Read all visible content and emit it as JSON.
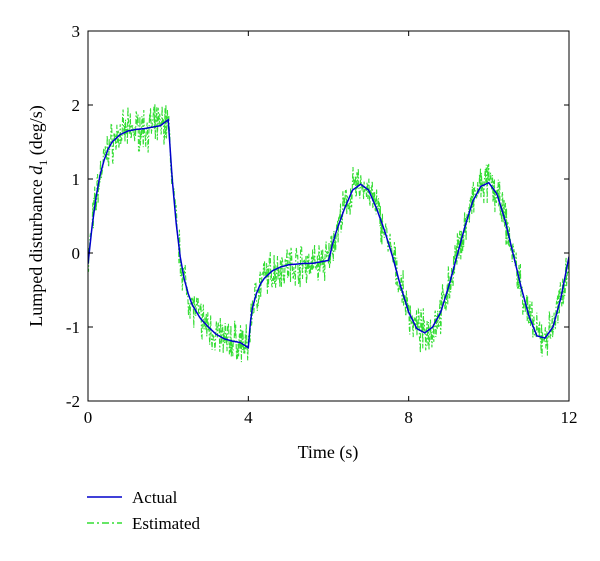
{
  "chart_data": {
    "type": "line",
    "xlabel": "Time (s)",
    "ylabel_main": "Lumped disturbance ",
    "ylabel_var": "d",
    "ylabel_sub": "1",
    "ylabel_unit": " (deg/s)",
    "xlim": [
      0,
      12
    ],
    "ylim": [
      -2,
      3
    ],
    "xticks": [
      0,
      4,
      8,
      12
    ],
    "yticks": [
      -2,
      -1,
      0,
      1,
      2,
      3
    ],
    "grid": false,
    "legend_position": "bottom-left, below plot",
    "series": [
      {
        "name": "Actual",
        "color": "#0000cc",
        "style": "solid",
        "x": [
          0,
          0.1,
          0.2,
          0.3,
          0.4,
          0.5,
          0.6,
          0.8,
          1.0,
          1.2,
          1.4,
          1.6,
          1.8,
          2.0,
          2.05,
          2.1,
          2.2,
          2.3,
          2.4,
          2.5,
          2.6,
          2.8,
          3.0,
          3.2,
          3.4,
          3.6,
          3.8,
          4.0,
          4.05,
          4.1,
          4.2,
          4.3,
          4.4,
          4.6,
          4.8,
          5.0,
          5.2,
          5.4,
          5.6,
          5.8,
          6.0,
          6.05,
          6.1,
          6.2,
          6.4,
          6.6,
          6.8,
          7.0,
          7.2,
          7.4,
          7.6,
          7.8,
          8.0,
          8.2,
          8.4,
          8.6,
          8.8,
          9.0,
          9.2,
          9.4,
          9.6,
          9.8,
          10.0,
          10.2,
          10.4,
          10.6,
          10.8,
          11.0,
          11.2,
          11.4,
          11.6,
          11.8,
          12.0
        ],
        "y": [
          -0.15,
          0.35,
          0.75,
          1.05,
          1.25,
          1.4,
          1.5,
          1.6,
          1.65,
          1.67,
          1.68,
          1.7,
          1.72,
          1.8,
          1.4,
          1.0,
          0.4,
          -0.05,
          -0.35,
          -0.55,
          -0.7,
          -0.88,
          -1.0,
          -1.1,
          -1.16,
          -1.19,
          -1.21,
          -1.28,
          -0.95,
          -0.75,
          -0.55,
          -0.42,
          -0.34,
          -0.24,
          -0.19,
          -0.16,
          -0.15,
          -0.14,
          -0.14,
          -0.12,
          -0.1,
          0.0,
          0.12,
          0.3,
          0.6,
          0.85,
          0.93,
          0.85,
          0.6,
          0.3,
          -0.05,
          -0.45,
          -0.8,
          -1.02,
          -1.08,
          -1.0,
          -0.8,
          -0.45,
          -0.05,
          0.35,
          0.7,
          0.9,
          0.95,
          0.8,
          0.45,
          0.0,
          -0.45,
          -0.85,
          -1.12,
          -1.15,
          -1.0,
          -0.6,
          -0.05
        ]
      },
      {
        "name": "Estimated",
        "color": "#33dd33",
        "style": "dash-dot",
        "noise_amplitude": 0.28
      }
    ]
  }
}
